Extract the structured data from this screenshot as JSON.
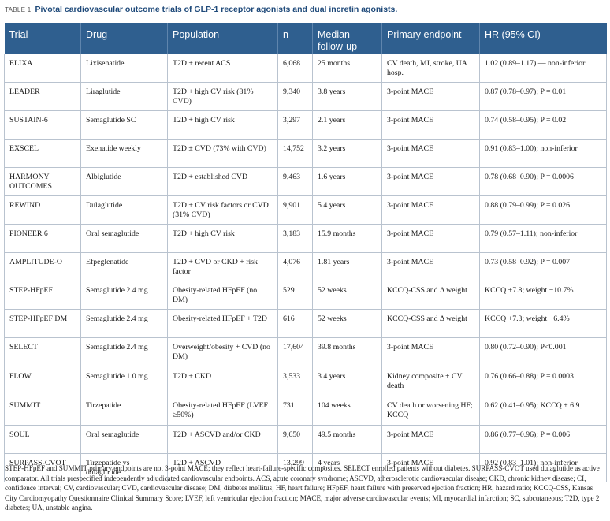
{
  "caption": {
    "label": "TABLE 1",
    "title": "Pivotal cardiovascular outcome trials of GLP-1 receptor agonists and dual incretin agonists."
  },
  "table": {
    "headers": [
      "Trial",
      "Drug",
      "Population",
      "n",
      "Median follow-up",
      "Primary endpoint",
      "HR (95% CI)"
    ],
    "rows": [
      [
        "ELIXA",
        "Lixisenatide",
        "T2D + recent ACS",
        "6,068",
        "25 months",
        "CV death, MI, stroke, UA hosp.",
        "1.02 (0.89–1.17) — non-inferior"
      ],
      [
        "LEADER",
        "Liraglutide",
        "T2D + high CV risk (81% CVD)",
        "9,340",
        "3.8 years",
        "3-point MACE",
        "0.87 (0.78–0.97); P = 0.01"
      ],
      [
        "SUSTAIN-6",
        "Semaglutide SC",
        "T2D + high CV risk",
        "3,297",
        "2.1 years",
        "3-point MACE",
        "0.74 (0.58–0.95); P = 0.02"
      ],
      [
        "EXSCEL",
        "Exenatide weekly",
        "T2D ± CVD (73% with CVD)",
        "14,752",
        "3.2 years",
        "3-point MACE",
        "0.91 (0.83–1.00); non-inferior"
      ],
      [
        "HARMONY OUTCOMES",
        "Albiglutide",
        "T2D + established CVD",
        "9,463",
        "1.6 years",
        "3-point MACE",
        "0.78 (0.68–0.90); P = 0.0006"
      ],
      [
        "REWIND",
        "Dulaglutide",
        "T2D + CV risk factors or CVD (31% CVD)",
        "9,901",
        "5.4 years",
        "3-point MACE",
        "0.88 (0.79–0.99); P = 0.026"
      ],
      [
        "PIONEER 6",
        "Oral semaglutide",
        "T2D + high CV risk",
        "3,183",
        "15.9 months",
        "3-point MACE",
        "0.79 (0.57–1.11); non-inferior"
      ],
      [
        "AMPLITUDE-O",
        "Efpeglenatide",
        "T2D + CVD or CKD + risk factor",
        "4,076",
        "1.81 years",
        "3-point MACE",
        "0.73 (0.58–0.92); P = 0.007"
      ],
      [
        "STEP-HFpEF",
        "Semaglutide 2.4 mg",
        "Obesity-related HFpEF (no DM)",
        "529",
        "52 weeks",
        "KCCQ-CSS and Δ weight",
        "KCCQ +7.8; weight −10.7%"
      ],
      [
        "STEP-HFpEF DM",
        "Semaglutide 2.4 mg",
        "Obesity-related HFpEF + T2D",
        "616",
        "52 weeks",
        "KCCQ-CSS and Δ weight",
        "KCCQ +7.3; weight −6.4%"
      ],
      [
        "SELECT",
        "Semaglutide 2.4 mg",
        "Overweight/obesity + CVD (no DM)",
        "17,604",
        "39.8 months",
        "3-point MACE",
        "0.80 (0.72–0.90); P<0.001"
      ],
      [
        "FLOW",
        "Semaglutide 1.0 mg",
        "T2D + CKD",
        "3,533",
        "3.4 years",
        "Kidney composite + CV death",
        "0.76 (0.66–0.88); P = 0.0003"
      ],
      [
        "SUMMIT",
        "Tirzepatide",
        "Obesity-related HFpEF (LVEF ≥50%)",
        "731",
        "104 weeks",
        "CV death or worsening HF; KCCQ",
        "0.62 (0.41–0.95); KCCQ + 6.9"
      ],
      [
        "SOUL",
        "Oral semaglutide",
        "T2D + ASCVD and/or CKD",
        "9,650",
        "49.5 months",
        "3-point MACE",
        "0.86 (0.77–0.96); P = 0.006"
      ],
      [
        "SURPASS-CVOT",
        "Tirzepatide vs dulaglutide",
        "T2D + ASCVD",
        "13,299",
        "4 years",
        "3-point MACE",
        "0.92 (0.83–1.01); non-inferior"
      ]
    ]
  },
  "footnote": "STEP-HFpEF and SUMMIT primary endpoints are not 3-point MACE; they reflect heart-failure-specific composites. SELECT enrolled patients without diabetes. SURPASS-CVOT used dulaglutide as active comparator. All trials prespecified independently adjudicated cardiovascular endpoints. ACS, acute coronary syndrome; ASCVD, atherosclerotic cardiovascular disease; CKD, chronic kidney disease; CI, confidence interval; CV, cardiovascular; CVD, cardiovascular disease; DM, diabetes mellitus; HF, heart failure; HFpEF, heart failure with preserved ejection fraction; HR, hazard ratio; KCCQ-CSS, Kansas City Cardiomyopathy Questionnaire Clinical Summary Score; LVEF, left ventricular ejection fraction; MACE, major adverse cardiovascular events; MI, myocardial infarction; SC, subcutaneous; T2D, type 2 diabetes; UA, unstable angina.",
  "colors": {
    "header_bg": "#2f5f8f",
    "title": "#1f4a7a",
    "grid": "#b9c3cf"
  }
}
